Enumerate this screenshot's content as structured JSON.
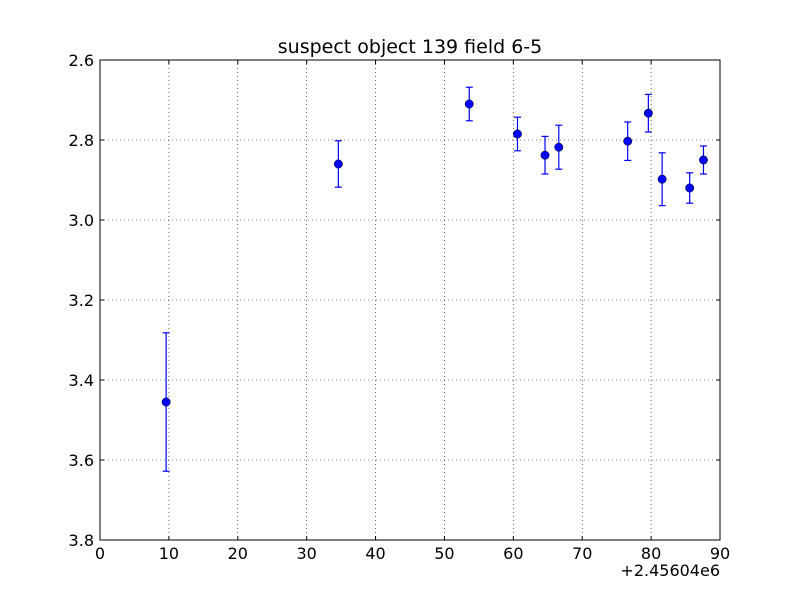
{
  "chart_data": {
    "type": "scatter",
    "title": "suspect object 139 field 6-5",
    "xlabel": "",
    "ylabel": "",
    "x_offset_label": "+2.45604e6",
    "xlim": [
      0,
      90
    ],
    "ylim": [
      3.8,
      2.6
    ],
    "y_inverted": true,
    "grid": true,
    "xticks": [
      "0",
      "10",
      "20",
      "30",
      "40",
      "50",
      "60",
      "70",
      "80",
      "90"
    ],
    "yticks": [
      "2.6",
      "2.8",
      "3.0",
      "3.2",
      "3.4",
      "3.6",
      "3.8"
    ],
    "marker_color": "#0000ff",
    "series": [
      {
        "points": [
          {
            "x": 9.6,
            "y": 3.455,
            "err": 0.173
          },
          {
            "x": 34.6,
            "y": 2.86,
            "err": 0.058
          },
          {
            "x": 53.6,
            "y": 2.71,
            "err": 0.042
          },
          {
            "x": 60.6,
            "y": 2.785,
            "err": 0.042
          },
          {
            "x": 64.6,
            "y": 2.838,
            "err": 0.047
          },
          {
            "x": 66.6,
            "y": 2.818,
            "err": 0.055
          },
          {
            "x": 76.6,
            "y": 2.803,
            "err": 0.048
          },
          {
            "x": 79.6,
            "y": 2.733,
            "err": 0.047
          },
          {
            "x": 81.6,
            "y": 2.898,
            "err": 0.066
          },
          {
            "x": 85.6,
            "y": 2.92,
            "err": 0.038
          },
          {
            "x": 87.6,
            "y": 2.85,
            "err": 0.035
          }
        ]
      }
    ]
  }
}
